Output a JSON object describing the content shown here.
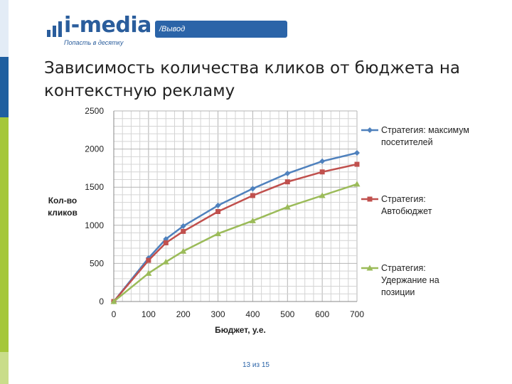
{
  "header": {
    "logo_text": "i-media",
    "logo_tagline": "Попасть в десятку",
    "section_tag": "/Вывод"
  },
  "slide": {
    "title": "Зависимость количества кликов от бюджета на контекстную рекламу",
    "page_indicator": "13 из 15"
  },
  "colors": {
    "brand": "#2b64a8",
    "sidebar_top": "#1f5fa0",
    "sidebar_bottom": "#a5c739",
    "series_1": "#4f81bd",
    "series_2": "#c0504d",
    "series_3": "#9bbb59"
  },
  "chart_data": {
    "type": "line",
    "title": "",
    "xlabel": "Бюджет, у.е.",
    "ylabel": "Кол-во кликов",
    "xlim": [
      0,
      700
    ],
    "ylim": [
      0,
      2500
    ],
    "xticks": [
      0,
      100,
      200,
      300,
      400,
      500,
      600,
      700
    ],
    "yticks": [
      0,
      500,
      1000,
      1500,
      2000,
      2500
    ],
    "grid": true,
    "legend_position": "right",
    "x": [
      0,
      100,
      150,
      200,
      300,
      400,
      500,
      600,
      700
    ],
    "series": [
      {
        "name": "Стратегия: максимум посетителей",
        "marker": "diamond",
        "values": [
          0,
          570,
          820,
          990,
          1260,
          1480,
          1680,
          1840,
          1950
        ]
      },
      {
        "name": "Стратегия: Автобюджет",
        "marker": "square",
        "values": [
          0,
          540,
          770,
          920,
          1180,
          1390,
          1570,
          1700,
          1800
        ]
      },
      {
        "name": "Стратегия: Удержание на позиции",
        "marker": "triangle",
        "values": [
          0,
          370,
          520,
          660,
          890,
          1060,
          1240,
          1390,
          1540
        ]
      }
    ]
  }
}
